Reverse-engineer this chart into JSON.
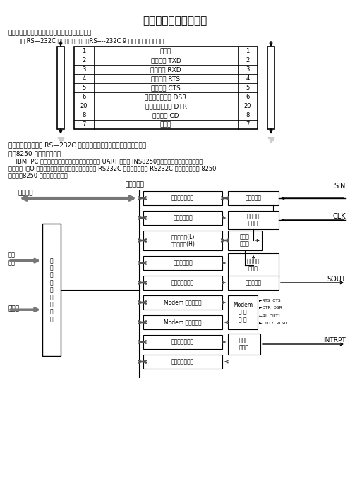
{
  "title": "计算机系统的通信实验",
  "bg_color": "#ffffff",
  "section1_title": "一、目的：了解计算机间的数据通信的基本技术。",
  "section1_sub": "了解 RS—232C 的结构及使用方法。RS----232C 9 芯连接器插针定义如下：",
  "table_rows": [
    [
      "1",
      "保护地",
      "1"
    ],
    [
      "2",
      "发送数据 TXD",
      "2"
    ],
    [
      "3",
      "接收数据 RXD",
      "3"
    ],
    [
      "4",
      "请求发送 RTS",
      "4"
    ],
    [
      "5",
      "准允发送 CTS",
      "5"
    ],
    [
      "6",
      "数据装置准备好 DSR",
      "6"
    ],
    [
      "20",
      "数据终端准备好 DTR",
      "20"
    ],
    [
      "8",
      "载波检测 CD",
      "8"
    ],
    [
      "7",
      "信号地",
      "7"
    ]
  ],
  "section2": "二、使用设备：带有 RS—232C 通信接口的微型计算器及一根多芯电缆。",
  "section3_title": "三、8250 异步串行接口：",
  "body_lines": [
    "    IBM  PC 系统可选的串行异步通信接口板上用的 UART 是一片 INS8250，以它为核心，附加一些辅助",
    "电路，如 I／O 地址译码电路电平变换电路等，组成了 RS232C 接口。所以，对 RS232C 编程实际上是对 8250",
    "的编程。8250 的逻辑框图如下："
  ],
  "diag_inner_bus": "内部总线路",
  "diag_data_bus": "数据总线",
  "diag_addr_bus": "地址\n总线",
  "diag_ctrl_bus": "控制线",
  "diag_left_blk": "地\n址\n选\n择\n等\n控\n制\n逻\n辑",
  "diag_sin": "SIN",
  "diag_clk": "CLK",
  "diag_sout": "SOUT",
  "diag_intrpt": "INTRPT",
  "reg_labels": [
    "接收数据寄存器",
    "线控制寄存器",
    "分频寄存器(L)\n分频寄存器(H)",
    "线状态寄存器",
    "发送保持寄存器",
    "Modem 控制寄存器",
    "Modem 状态寄存器",
    "中断允许寄存器",
    "中断标识寄存器"
  ],
  "right_blk_labels": [
    "移位寄存器",
    "接收定时\n和控制",
    "波特率\n产生器",
    "发送定时\n和控制",
    "移位寄存器"
  ],
  "modem_blk_label": "Modem\n控 制\n逻 辑",
  "int_blk_label": "中断控\n制逻辑",
  "modem_signals": [
    "►RTS  CTS",
    "►DTR  DSR",
    "←RI  OUT1",
    "►OUT2  RLSD"
  ]
}
